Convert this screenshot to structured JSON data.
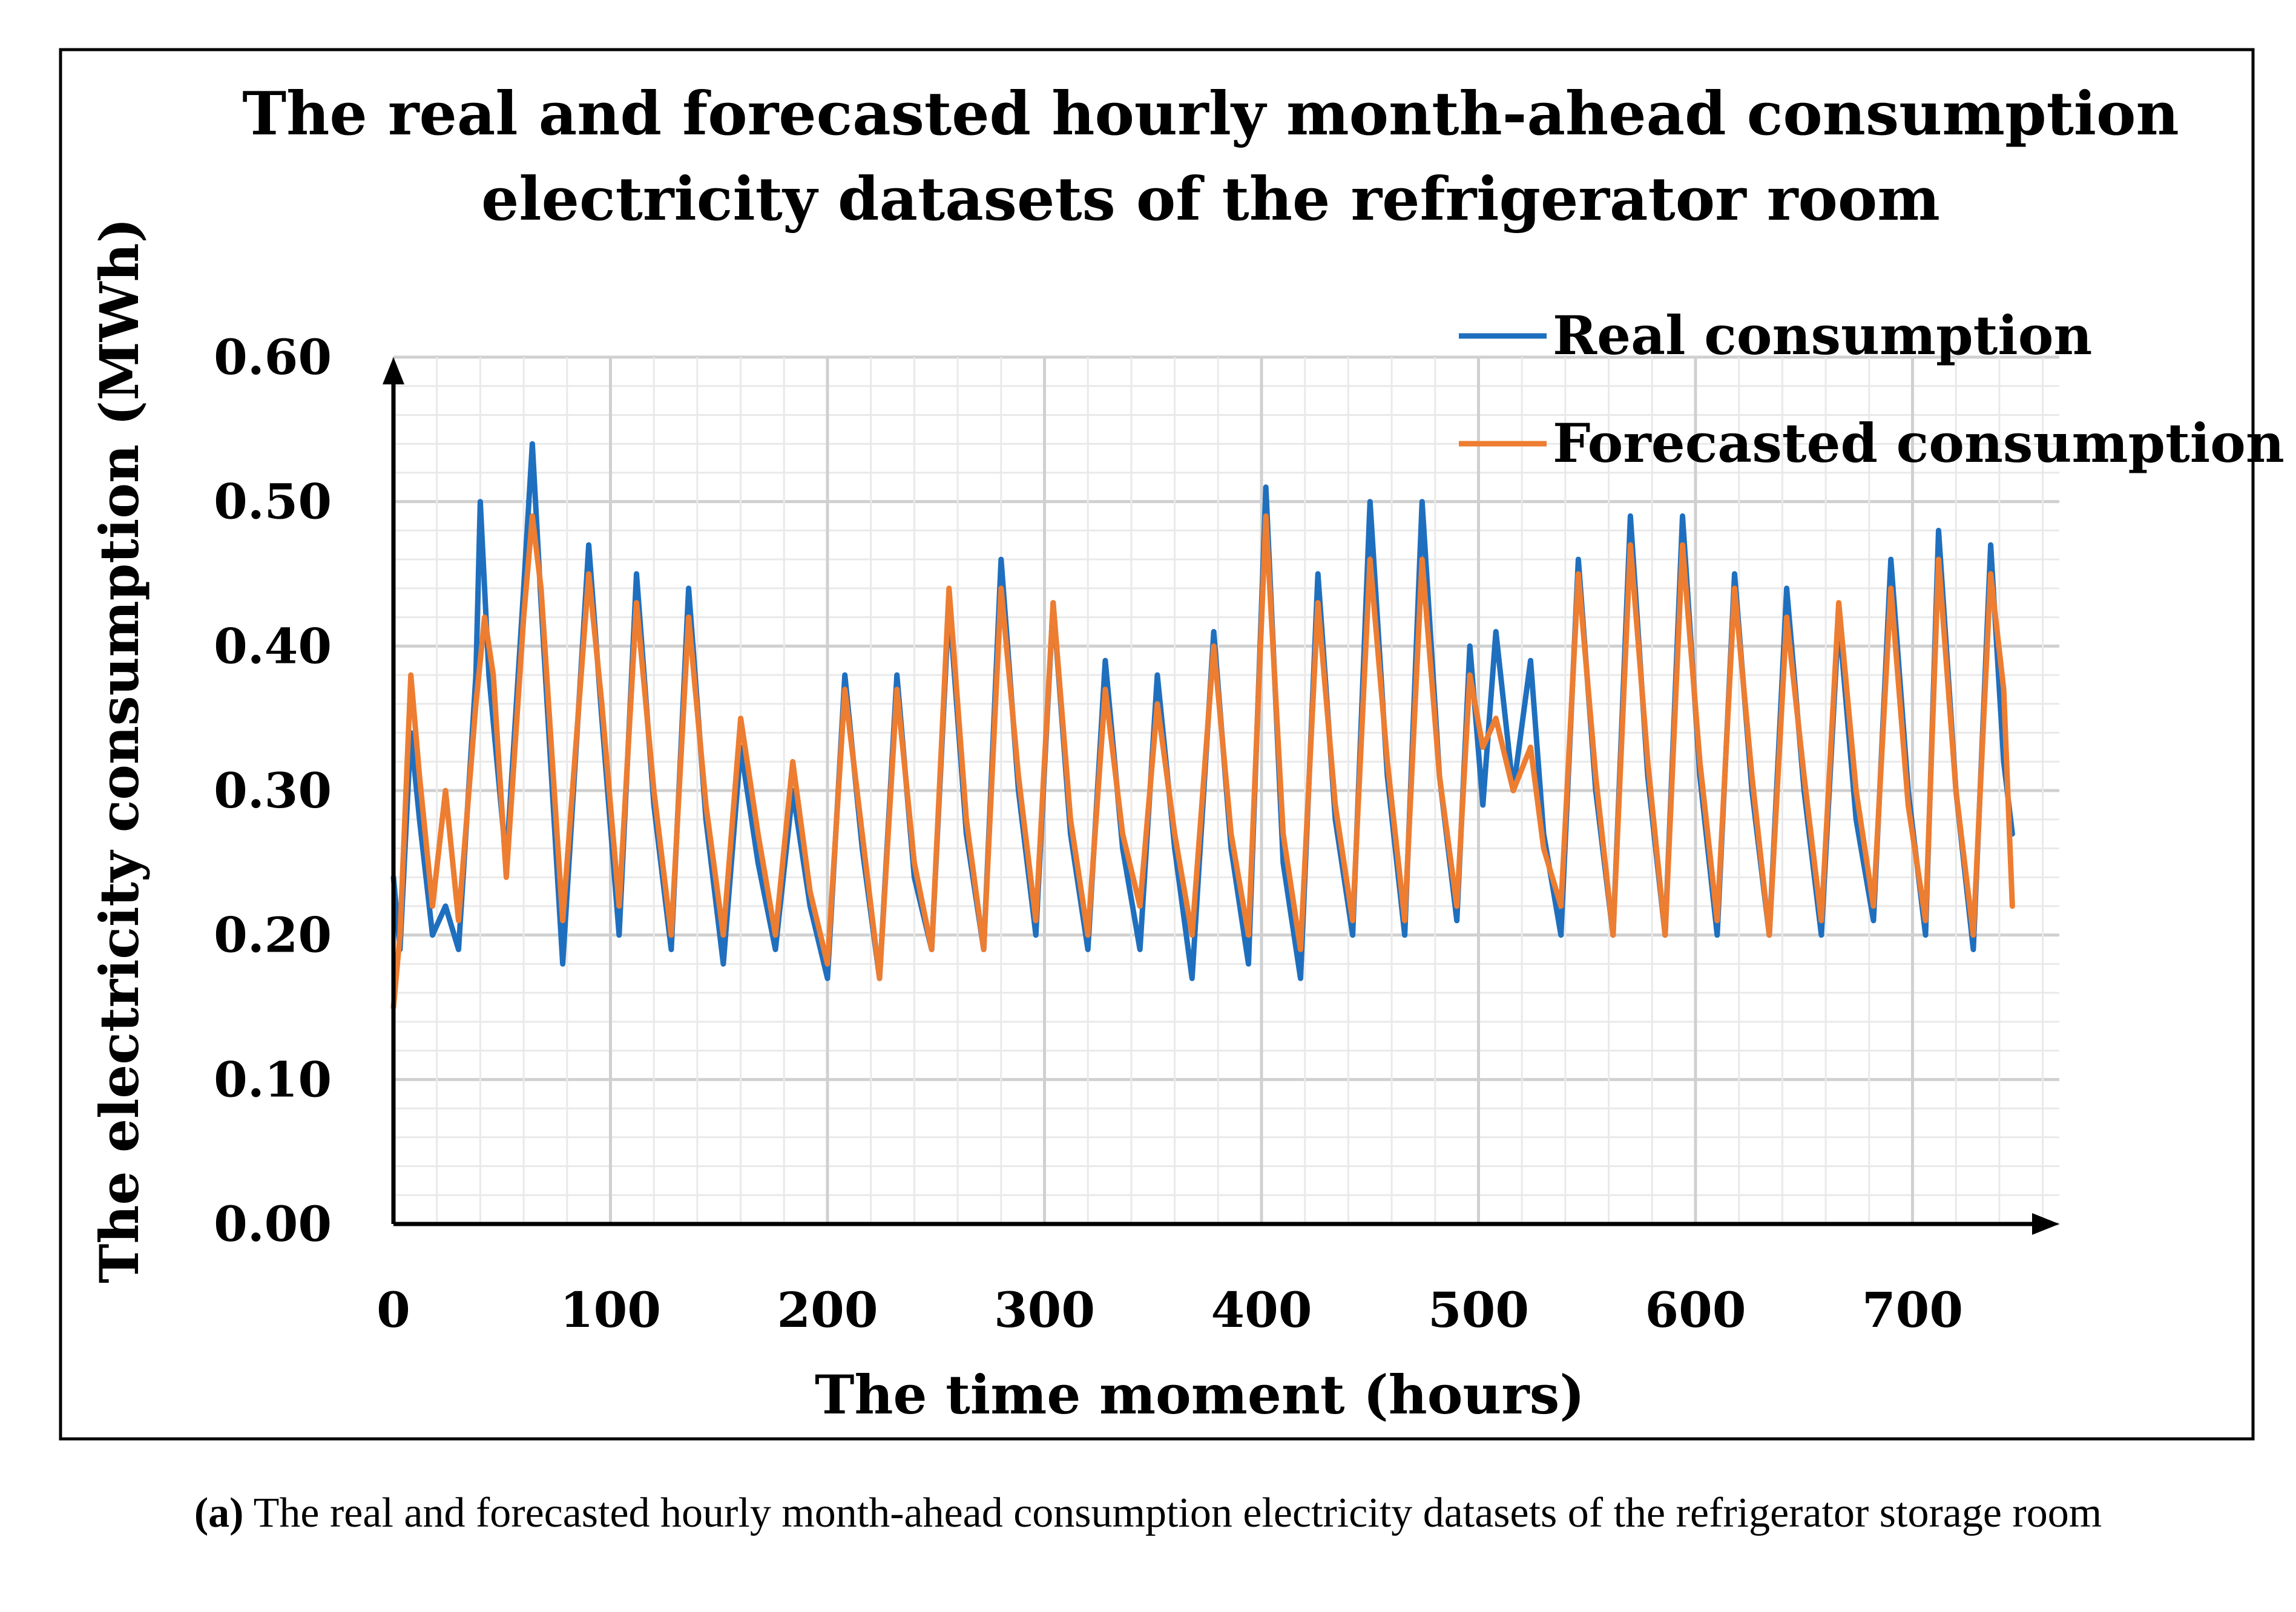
{
  "chart_data": {
    "type": "line",
    "title_lines": [
      "The real and forecasted hourly month-ahead consumption",
      "electricity datasets of the refrigerator room"
    ],
    "xlabel": "The time moment (hours)",
    "ylabel": "The electricity  consumption  (MWh)",
    "xlim": [
      0,
      770
    ],
    "ylim": [
      0,
      0.6
    ],
    "x_ticks": [
      0,
      100,
      200,
      300,
      400,
      500,
      600,
      700
    ],
    "x_tick_labels": [
      "0",
      "100",
      "200",
      "300",
      "400",
      "500",
      "600",
      "700"
    ],
    "y_ticks": [
      0,
      0.1,
      0.2,
      0.3,
      0.4,
      0.5,
      0.6
    ],
    "y_tick_labels": [
      "0.00",
      "0.10",
      "0.20",
      "0.30",
      "0.40",
      "0.50",
      "0.60"
    ],
    "grid": true,
    "legend_position": "top-right",
    "series": [
      {
        "name": "Real consumption",
        "color": "#1f6fbf",
        "points": [
          [
            0,
            0.24
          ],
          [
            3,
            0.19
          ],
          [
            8,
            0.34
          ],
          [
            12,
            0.28
          ],
          [
            18,
            0.2
          ],
          [
            24,
            0.22
          ],
          [
            30,
            0.19
          ],
          [
            38,
            0.38
          ],
          [
            40,
            0.5
          ],
          [
            44,
            0.38
          ],
          [
            52,
            0.25
          ],
          [
            60,
            0.44
          ],
          [
            64,
            0.54
          ],
          [
            68,
            0.43
          ],
          [
            78,
            0.18
          ],
          [
            90,
            0.47
          ],
          [
            96,
            0.35
          ],
          [
            104,
            0.2
          ],
          [
            112,
            0.45
          ],
          [
            120,
            0.29
          ],
          [
            128,
            0.19
          ],
          [
            136,
            0.44
          ],
          [
            144,
            0.28
          ],
          [
            152,
            0.18
          ],
          [
            160,
            0.33
          ],
          [
            168,
            0.25
          ],
          [
            176,
            0.19
          ],
          [
            184,
            0.3
          ],
          [
            192,
            0.22
          ],
          [
            200,
            0.17
          ],
          [
            208,
            0.38
          ],
          [
            216,
            0.26
          ],
          [
            224,
            0.17
          ],
          [
            232,
            0.38
          ],
          [
            240,
            0.24
          ],
          [
            248,
            0.19
          ],
          [
            256,
            0.43
          ],
          [
            264,
            0.27
          ],
          [
            272,
            0.19
          ],
          [
            280,
            0.46
          ],
          [
            288,
            0.3
          ],
          [
            296,
            0.2
          ],
          [
            304,
            0.43
          ],
          [
            312,
            0.27
          ],
          [
            320,
            0.19
          ],
          [
            328,
            0.39
          ],
          [
            336,
            0.26
          ],
          [
            344,
            0.19
          ],
          [
            352,
            0.38
          ],
          [
            360,
            0.26
          ],
          [
            368,
            0.17
          ],
          [
            378,
            0.41
          ],
          [
            386,
            0.26
          ],
          [
            394,
            0.18
          ],
          [
            402,
            0.51
          ],
          [
            410,
            0.25
          ],
          [
            418,
            0.17
          ],
          [
            426,
            0.45
          ],
          [
            434,
            0.28
          ],
          [
            442,
            0.2
          ],
          [
            450,
            0.5
          ],
          [
            458,
            0.31
          ],
          [
            466,
            0.2
          ],
          [
            474,
            0.5
          ],
          [
            482,
            0.31
          ],
          [
            490,
            0.21
          ],
          [
            496,
            0.4
          ],
          [
            502,
            0.29
          ],
          [
            508,
            0.41
          ],
          [
            516,
            0.3
          ],
          [
            524,
            0.39
          ],
          [
            530,
            0.27
          ],
          [
            538,
            0.2
          ],
          [
            546,
            0.46
          ],
          [
            554,
            0.3
          ],
          [
            562,
            0.2
          ],
          [
            570,
            0.49
          ],
          [
            578,
            0.31
          ],
          [
            586,
            0.2
          ],
          [
            594,
            0.49
          ],
          [
            602,
            0.31
          ],
          [
            610,
            0.2
          ],
          [
            618,
            0.45
          ],
          [
            626,
            0.3
          ],
          [
            634,
            0.2
          ],
          [
            642,
            0.44
          ],
          [
            650,
            0.3
          ],
          [
            658,
            0.2
          ],
          [
            666,
            0.42
          ],
          [
            674,
            0.28
          ],
          [
            682,
            0.21
          ],
          [
            690,
            0.46
          ],
          [
            698,
            0.3
          ],
          [
            706,
            0.2
          ],
          [
            712,
            0.48
          ],
          [
            720,
            0.3
          ],
          [
            728,
            0.19
          ],
          [
            736,
            0.47
          ],
          [
            742,
            0.32
          ],
          [
            746,
            0.27
          ]
        ]
      },
      {
        "name": "Forecasted consumption",
        "color": "#ed7d31",
        "points": [
          [
            0,
            0.15
          ],
          [
            3,
            0.2
          ],
          [
            8,
            0.38
          ],
          [
            12,
            0.31
          ],
          [
            18,
            0.22
          ],
          [
            24,
            0.3
          ],
          [
            30,
            0.21
          ],
          [
            38,
            0.36
          ],
          [
            42,
            0.42
          ],
          [
            46,
            0.38
          ],
          [
            52,
            0.24
          ],
          [
            60,
            0.42
          ],
          [
            64,
            0.49
          ],
          [
            68,
            0.44
          ],
          [
            78,
            0.21
          ],
          [
            90,
            0.45
          ],
          [
            96,
            0.36
          ],
          [
            104,
            0.22
          ],
          [
            112,
            0.43
          ],
          [
            120,
            0.3
          ],
          [
            128,
            0.2
          ],
          [
            136,
            0.42
          ],
          [
            144,
            0.29
          ],
          [
            152,
            0.2
          ],
          [
            160,
            0.35
          ],
          [
            168,
            0.27
          ],
          [
            176,
            0.2
          ],
          [
            184,
            0.32
          ],
          [
            192,
            0.23
          ],
          [
            200,
            0.18
          ],
          [
            208,
            0.37
          ],
          [
            216,
            0.27
          ],
          [
            224,
            0.17
          ],
          [
            232,
            0.37
          ],
          [
            240,
            0.25
          ],
          [
            248,
            0.19
          ],
          [
            256,
            0.44
          ],
          [
            264,
            0.28
          ],
          [
            272,
            0.19
          ],
          [
            280,
            0.44
          ],
          [
            288,
            0.31
          ],
          [
            296,
            0.21
          ],
          [
            304,
            0.43
          ],
          [
            312,
            0.28
          ],
          [
            320,
            0.2
          ],
          [
            328,
            0.37
          ],
          [
            336,
            0.27
          ],
          [
            344,
            0.22
          ],
          [
            352,
            0.36
          ],
          [
            360,
            0.27
          ],
          [
            368,
            0.2
          ],
          [
            378,
            0.4
          ],
          [
            386,
            0.27
          ],
          [
            394,
            0.2
          ],
          [
            402,
            0.49
          ],
          [
            410,
            0.27
          ],
          [
            418,
            0.19
          ],
          [
            426,
            0.43
          ],
          [
            434,
            0.29
          ],
          [
            442,
            0.21
          ],
          [
            450,
            0.46
          ],
          [
            458,
            0.32
          ],
          [
            466,
            0.21
          ],
          [
            474,
            0.46
          ],
          [
            482,
            0.31
          ],
          [
            490,
            0.22
          ],
          [
            496,
            0.38
          ],
          [
            502,
            0.33
          ],
          [
            508,
            0.35
          ],
          [
            516,
            0.3
          ],
          [
            524,
            0.33
          ],
          [
            530,
            0.26
          ],
          [
            538,
            0.22
          ],
          [
            546,
            0.45
          ],
          [
            554,
            0.31
          ],
          [
            562,
            0.2
          ],
          [
            570,
            0.47
          ],
          [
            578,
            0.32
          ],
          [
            586,
            0.2
          ],
          [
            594,
            0.47
          ],
          [
            602,
            0.32
          ],
          [
            610,
            0.21
          ],
          [
            618,
            0.44
          ],
          [
            626,
            0.31
          ],
          [
            634,
            0.2
          ],
          [
            642,
            0.42
          ],
          [
            650,
            0.31
          ],
          [
            658,
            0.21
          ],
          [
            666,
            0.43
          ],
          [
            674,
            0.3
          ],
          [
            682,
            0.22
          ],
          [
            690,
            0.44
          ],
          [
            698,
            0.29
          ],
          [
            706,
            0.21
          ],
          [
            712,
            0.46
          ],
          [
            720,
            0.3
          ],
          [
            728,
            0.2
          ],
          [
            736,
            0.45
          ],
          [
            742,
            0.37
          ],
          [
            746,
            0.22
          ]
        ]
      }
    ]
  },
  "caption": {
    "label": "(a)",
    "text": " The real and forecasted hourly month-ahead consumption electricity datasets of the refrigerator storage room"
  }
}
